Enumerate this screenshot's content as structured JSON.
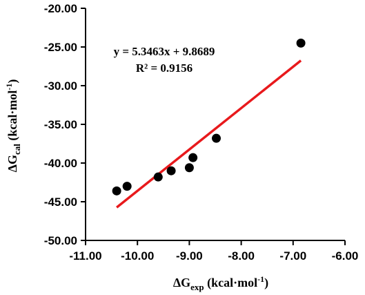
{
  "chart_data": {
    "type": "scatter",
    "xlim": [
      -11,
      -6
    ],
    "ylim": [
      -50,
      -20
    ],
    "x_ticks": [
      -11,
      -10,
      -9,
      -8,
      -7,
      -6
    ],
    "y_ticks": [
      -20,
      -25,
      -30,
      -35,
      -40,
      -45,
      -50
    ],
    "x_tick_labels": [
      "-11.00",
      "-10.00",
      "-9.00",
      "-8.00",
      "-7.00",
      "-6.00"
    ],
    "y_tick_labels": [
      "-20.00",
      "-25.00",
      "-30.00",
      "-35.00",
      "-40.00",
      "-45.00",
      "-50.00"
    ],
    "xlabel": {
      "base": "ΔG",
      "sub": "exp",
      "unit": " (kcal·mol",
      "sup": "-1",
      "close": ")"
    },
    "ylabel": {
      "base": "ΔG",
      "sub": "cal",
      "unit": " (kcal·mol",
      "sup": "-1",
      "close": ")"
    },
    "points": [
      {
        "x": -10.4,
        "y": -43.6
      },
      {
        "x": -10.2,
        "y": -43.0
      },
      {
        "x": -9.6,
        "y": -41.8
      },
      {
        "x": -9.35,
        "y": -41.0
      },
      {
        "x": -9.0,
        "y": -40.6
      },
      {
        "x": -8.93,
        "y": -39.3
      },
      {
        "x": -8.48,
        "y": -36.8
      },
      {
        "x": -6.85,
        "y": -24.5
      }
    ],
    "trendline": {
      "slope": 5.3463,
      "intercept": 9.8689,
      "x_range": [
        -10.4,
        -6.85
      ],
      "color": "#e8191c"
    },
    "point_color": "#000000",
    "equation": "y = 5.3463x + 9.8689",
    "r_squared": "R² = 0.9156",
    "grid": false,
    "legend": "none"
  }
}
